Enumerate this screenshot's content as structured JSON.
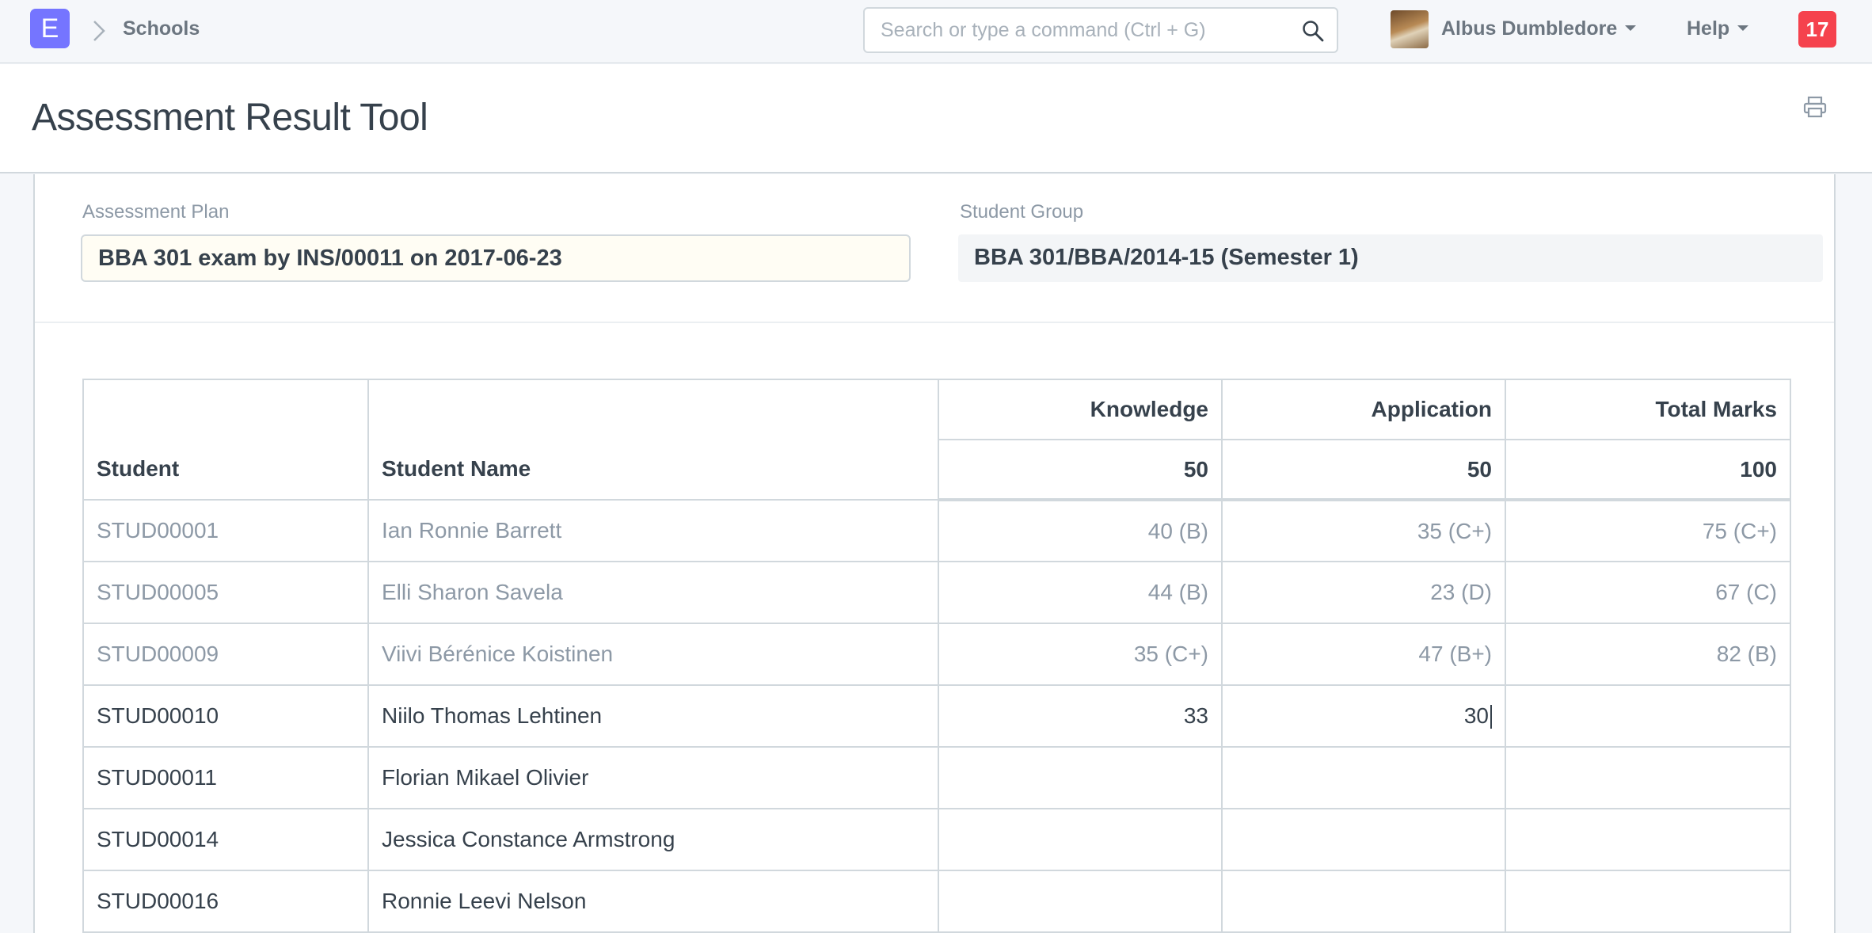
{
  "navbar": {
    "logo_letter": "E",
    "breadcrumb": "Schools",
    "search_placeholder": "Search or type a command (Ctrl + G)",
    "user_name": "Albus Dumbledore",
    "help_label": "Help",
    "notification_count": "17"
  },
  "page": {
    "title": "Assessment Result Tool"
  },
  "form": {
    "assessment_plan_label": "Assessment Plan",
    "assessment_plan_value": "BBA 301 exam by INS/00011 on 2017-06-23",
    "student_group_label": "Student Group",
    "student_group_value": "BBA 301/BBA/2014-15 (Semester 1)"
  },
  "table": {
    "headers": {
      "student": "Student",
      "student_name": "Student Name",
      "knowledge": "Knowledge",
      "application": "Application",
      "total": "Total Marks",
      "knowledge_max": "50",
      "application_max": "50",
      "total_max": "100"
    },
    "rows": [
      {
        "student": "STUD00001",
        "name": "Ian Ronnie Barrett",
        "knowledge": "40 (B)",
        "application": "35 (C+)",
        "total": "75 (C+)"
      },
      {
        "student": "STUD00005",
        "name": "Elli Sharon Savela",
        "knowledge": "44 (B)",
        "application": "23 (D)",
        "total": "67 (C)"
      },
      {
        "student": "STUD00009",
        "name": "Viivi Bérénice Koistinen",
        "knowledge": "35 (C+)",
        "application": "47 (B+)",
        "total": "82 (B)"
      },
      {
        "student": "STUD00010",
        "name": "Niilo Thomas Lehtinen",
        "knowledge": "33",
        "application": "30",
        "total": ""
      },
      {
        "student": "STUD00011",
        "name": "Florian Mikael Olivier",
        "knowledge": "",
        "application": "",
        "total": ""
      },
      {
        "student": "STUD00014",
        "name": "Jessica Constance Armstrong",
        "knowledge": "",
        "application": "",
        "total": ""
      },
      {
        "student": "STUD00016",
        "name": "Ronnie Leevi Nelson",
        "knowledge": "",
        "application": "",
        "total": ""
      }
    ]
  },
  "colors": {
    "logo": "#7575ff",
    "badge": "#f5424d",
    "saved_text": "#8d99a6",
    "text": "#36414c"
  },
  "icons": [
    "chevron-right-icon",
    "search-icon",
    "caret-down-icon",
    "print-icon"
  ]
}
